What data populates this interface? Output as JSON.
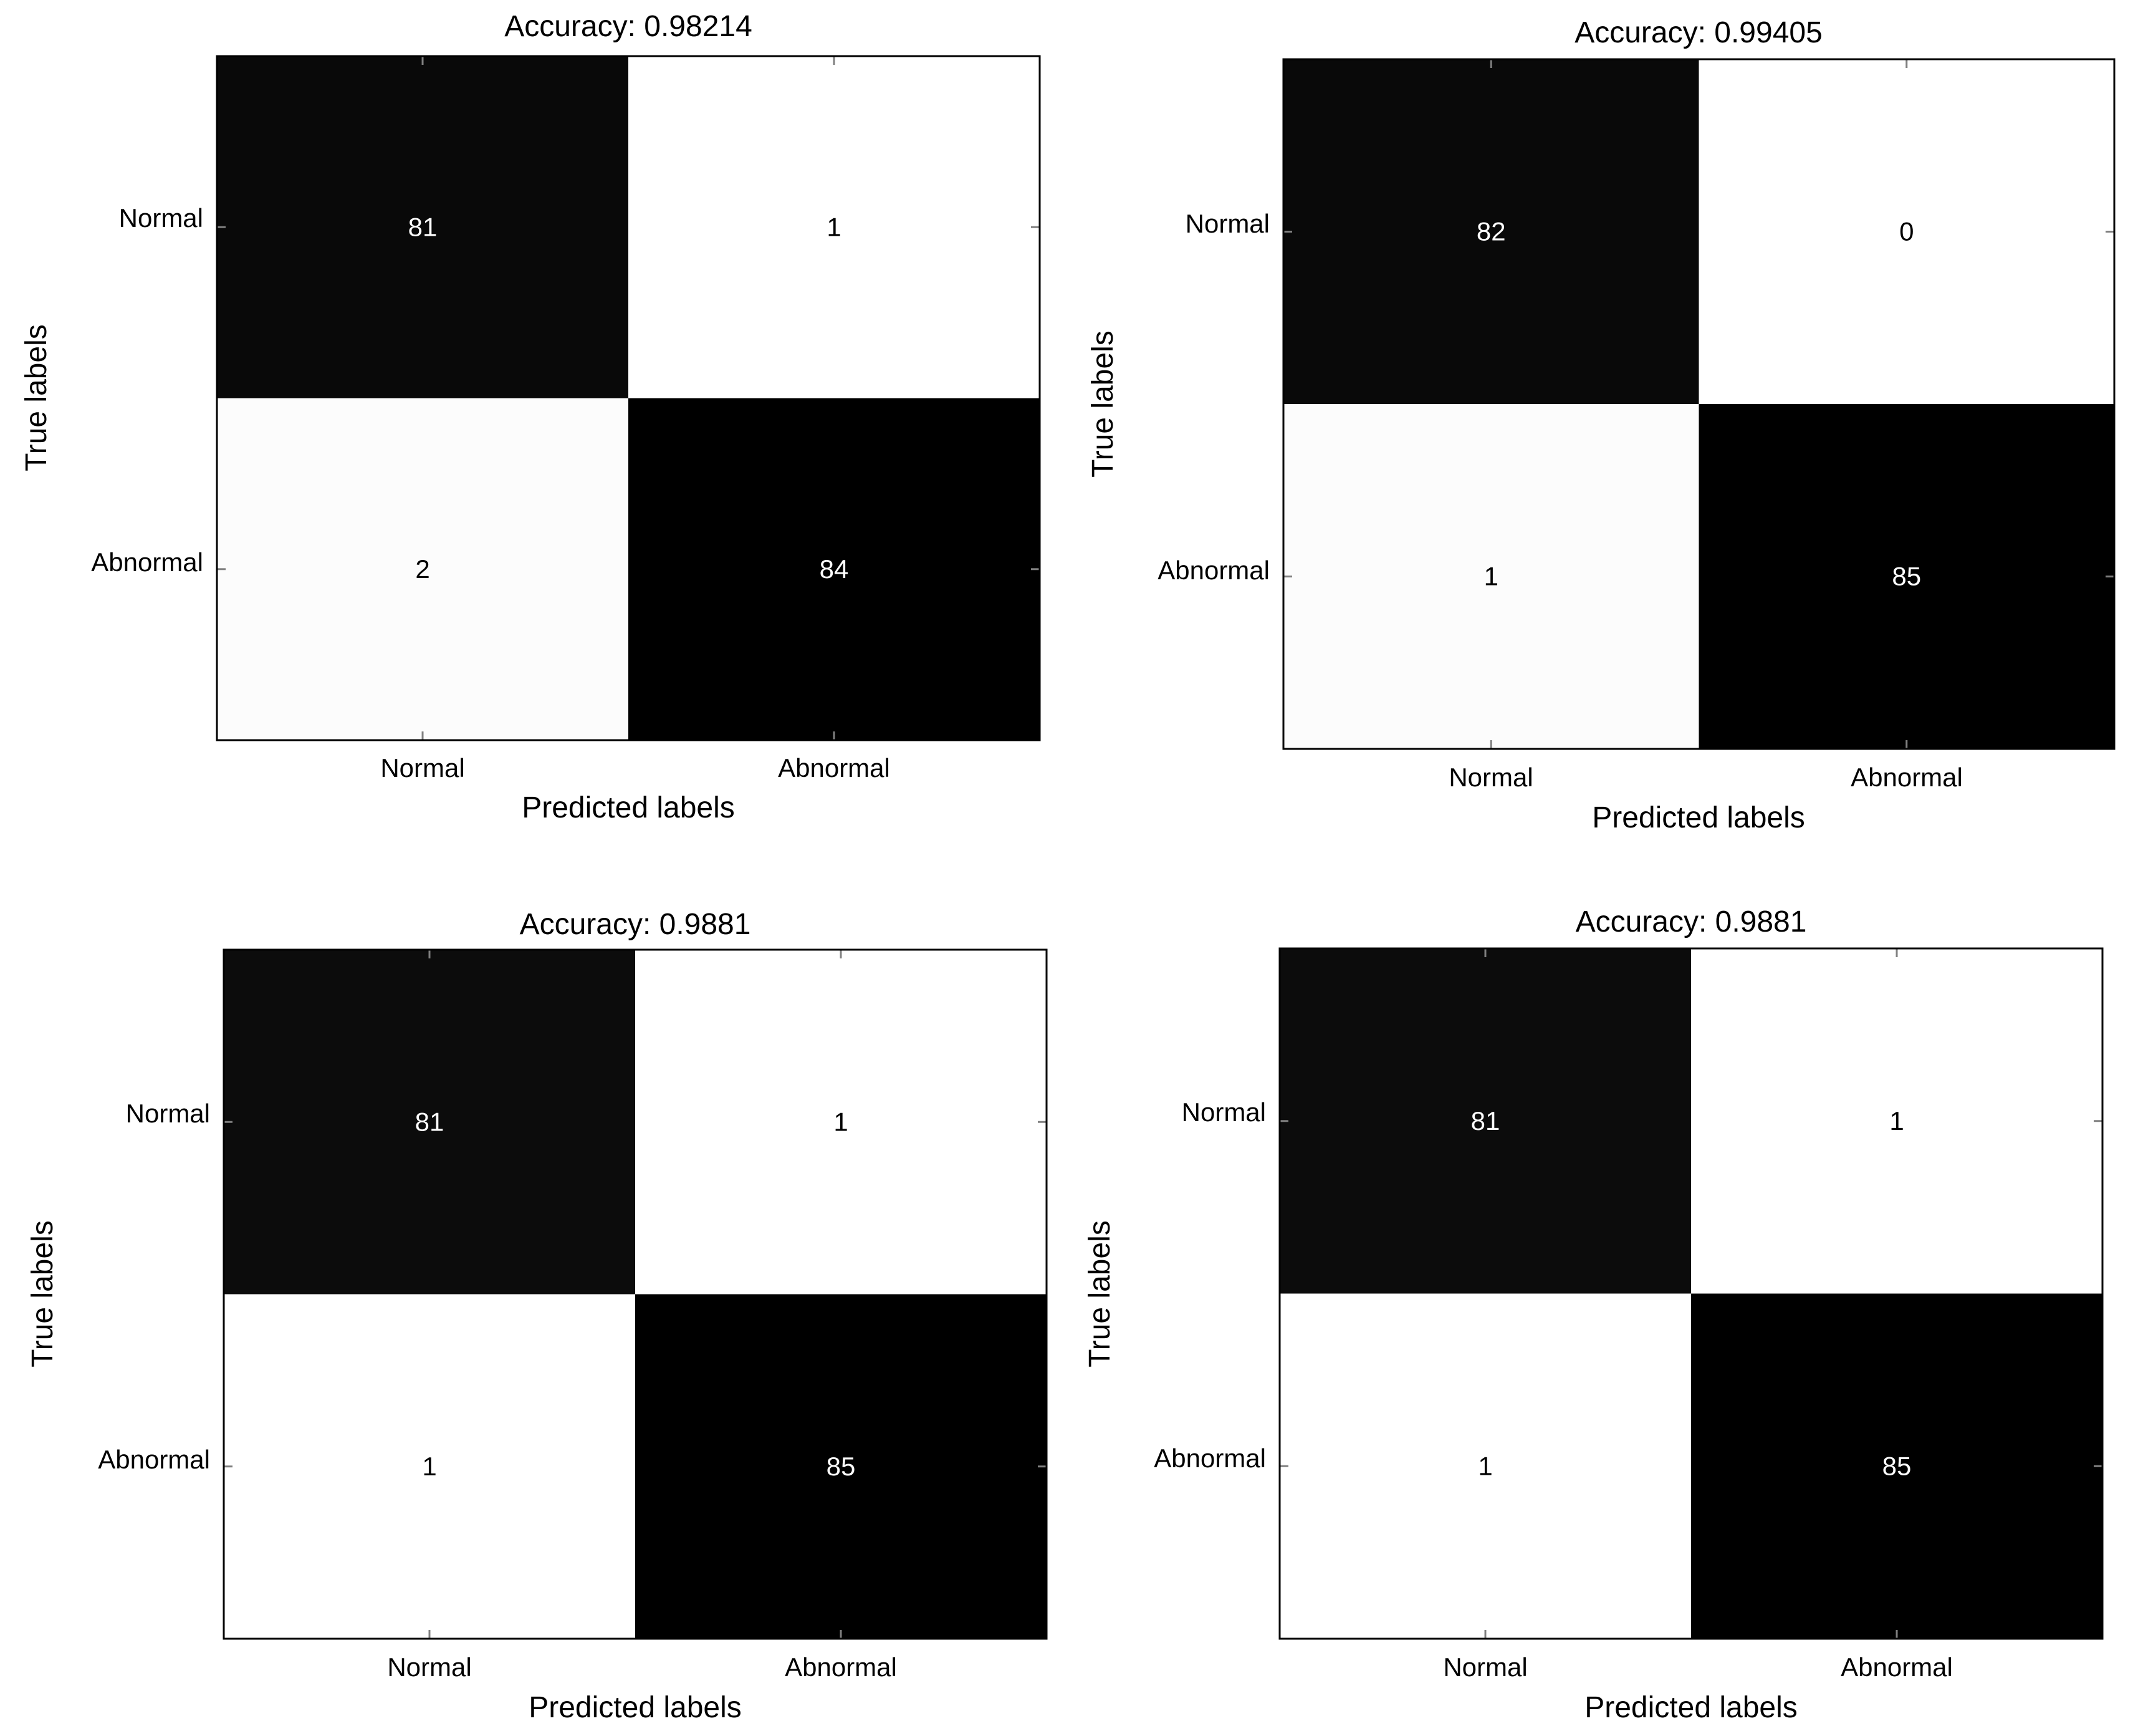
{
  "chart_data": [
    {
      "type": "heatmap",
      "title": "Accuracy: 0.98214",
      "xlabel": "Predicted labels",
      "ylabel": "True labels",
      "x_categories": [
        "Normal",
        "Abnormal"
      ],
      "y_categories": [
        "Normal",
        "Abnormal"
      ],
      "values": [
        [
          81,
          1
        ],
        [
          2,
          84
        ]
      ],
      "colors": {
        "high": "#000000",
        "low": "#ffffff"
      }
    },
    {
      "type": "heatmap",
      "title": "Accuracy: 0.99405",
      "xlabel": "Predicted labels",
      "ylabel": "True labels",
      "x_categories": [
        "Normal",
        "Abnormal"
      ],
      "y_categories": [
        "Normal",
        "Abnormal"
      ],
      "values": [
        [
          82,
          0
        ],
        [
          1,
          85
        ]
      ],
      "colors": {
        "high": "#000000",
        "low": "#ffffff"
      }
    },
    {
      "type": "heatmap",
      "title": "Accuracy: 0.9881",
      "xlabel": "Predicted labels",
      "ylabel": "True labels",
      "x_categories": [
        "Normal",
        "Abnormal"
      ],
      "y_categories": [
        "Normal",
        "Abnormal"
      ],
      "values": [
        [
          81,
          1
        ],
        [
          1,
          85
        ]
      ],
      "colors": {
        "high": "#000000",
        "low": "#ffffff"
      }
    },
    {
      "type": "heatmap",
      "title": "Accuracy: 0.9881",
      "xlabel": "Predicted labels",
      "ylabel": "True labels",
      "x_categories": [
        "Normal",
        "Abnormal"
      ],
      "y_categories": [
        "Normal",
        "Abnormal"
      ],
      "values": [
        [
          81,
          1
        ],
        [
          1,
          85
        ]
      ],
      "colors": {
        "high": "#000000",
        "low": "#ffffff"
      }
    }
  ]
}
